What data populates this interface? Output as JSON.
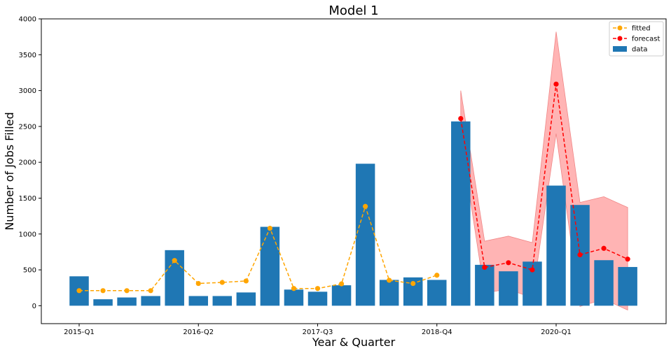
{
  "chart_data": {
    "type": "bar",
    "title": "Model 1",
    "xlabel": "Year & Quarter",
    "ylabel": "Number of Jobs Filled",
    "ylim": [
      -250,
      4000
    ],
    "yticks": [
      0,
      500,
      1000,
      1500,
      2000,
      2500,
      3000,
      3500,
      4000
    ],
    "x_tick_labels": [
      {
        "index": 0,
        "label": "2015-Q1"
      },
      {
        "index": 5,
        "label": "2016-Q2"
      },
      {
        "index": 10,
        "label": "2017-Q3"
      },
      {
        "index": 15,
        "label": "2018-Q4"
      },
      {
        "index": 20,
        "label": "2020-Q1"
      }
    ],
    "legend": {
      "placement": "top-right",
      "entries": [
        "fitted",
        "forecast",
        "data"
      ]
    },
    "grid": false,
    "series": [
      {
        "name": "data",
        "kind": "bar",
        "color": "#1f77b4",
        "values": [
          410,
          90,
          115,
          135,
          775,
          135,
          135,
          185,
          1100,
          225,
          195,
          285,
          1980,
          360,
          395,
          360,
          2570,
          570,
          480,
          615,
          1675,
          1405,
          635,
          540
        ]
      },
      {
        "name": "fitted",
        "kind": "line",
        "style": "dashed",
        "marker": "circle",
        "color": "#ffa500",
        "start_index": 0,
        "values": [
          210,
          210,
          210,
          210,
          630,
          310,
          325,
          345,
          1080,
          240,
          240,
          305,
          1385,
          355,
          310,
          425
        ]
      },
      {
        "name": "forecast",
        "kind": "line",
        "style": "dashed",
        "marker": "circle",
        "color": "#ff0000",
        "start_index": 16,
        "values": [
          2610,
          535,
          600,
          500,
          3090,
          710,
          800,
          650
        ],
        "interval_lower": [
          2350,
          180,
          230,
          110,
          2400,
          -10,
          90,
          -60
        ],
        "interval_upper": [
          3000,
          900,
          970,
          880,
          3820,
          1440,
          1520,
          1370
        ],
        "interval_color": "#ffb0b0"
      }
    ]
  }
}
